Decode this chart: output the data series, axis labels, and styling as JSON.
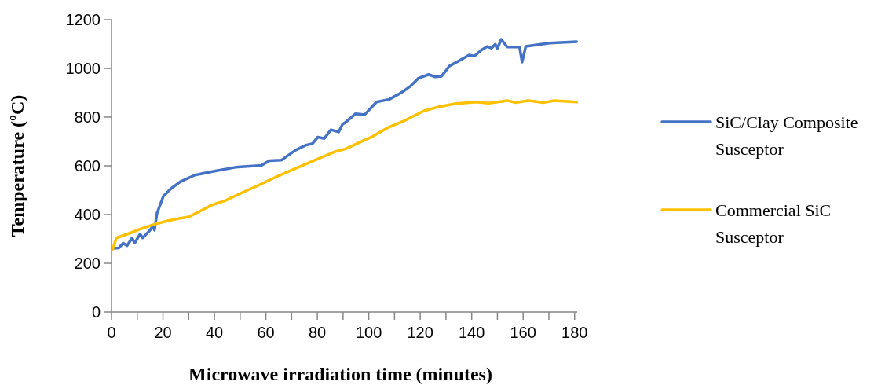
{
  "chart_data": {
    "type": "line",
    "xlabel": "Microwave irradiation time (minutes)",
    "ylabel": "Temperature (ºC)",
    "xlim": [
      0,
      181
    ],
    "xticks": [
      0,
      {
        "value": 10,
        "label": null
      },
      20,
      {
        "value": 30,
        "label": null
      },
      40,
      {
        "value": 50,
        "label": null
      },
      60,
      {
        "value": 70,
        "label": null
      },
      80,
      {
        "value": 90,
        "label": null
      },
      100,
      {
        "value": 110,
        "label": null
      },
      120,
      {
        "value": 130,
        "label": null
      },
      140,
      {
        "value": 150,
        "label": null
      },
      160,
      {
        "value": 170,
        "label": null
      },
      180
    ],
    "ylim": [
      0,
      1200
    ],
    "yticks": [
      0,
      200,
      400,
      600,
      800,
      1000,
      1200
    ],
    "grid": false,
    "legend": "right",
    "line_style": "solid",
    "marker": "none",
    "series": [
      {
        "name": "SiC/Clay Composite Susceptor",
        "color": "#4472c4",
        "x": [
          0.4,
          2.9,
          4.5,
          6,
          8,
          9,
          11.1,
          12.1,
          14.6,
          16.1,
          16.7,
          17.7,
          20.2,
          23.3,
          26.8,
          32.4,
          40,
          48.2,
          58.3,
          61.4,
          66,
          71.5,
          75.6,
          78.1,
          80.2,
          82.7,
          85.3,
          88.3,
          89.8,
          90.8,
          94.9,
          98.4,
          103,
          108,
          112.6,
          116.2,
          119.2,
          123.3,
          125.8,
          128.3,
          131.4,
          135.4,
          139,
          141,
          143.6,
          146.1,
          147.7,
          149.2,
          149.9,
          151.5,
          153.8,
          158.6,
          159.6,
          161,
          170.3,
          180.8
        ],
        "values": [
          261,
          263,
          283,
          272,
          304,
          283,
          320,
          304,
          331,
          352,
          336,
          406,
          476,
          508,
          535,
          562,
          578,
          594,
          602,
          621,
          623,
          664,
          685,
          691,
          718,
          712,
          748,
          739,
          771,
          777,
          814,
          810,
          862,
          873,
          900,
          927,
          959,
          975,
          965,
          968,
          1010,
          1033,
          1055,
          1050,
          1074,
          1090,
          1083,
          1099,
          1080,
          1119,
          1088,
          1088,
          1026,
          1090,
          1104,
          1110
        ]
      },
      {
        "name": "Commercial SiC Susceptor",
        "color": "#ffc000",
        "x": [
          0.4,
          1.9,
          7.5,
          11.6,
          16.7,
          21.8,
          26.8,
          29.9,
          35,
          39,
          44.1,
          50.2,
          57.3,
          65.5,
          72.6,
          79.7,
          86.8,
          90.8,
          101,
          107.1,
          114.2,
          121.3,
          127.4,
          133.5,
          141.6,
          146.7,
          153.8,
          156.9,
          162,
          168,
          172,
          180.8
        ],
        "values": [
          256,
          304,
          325,
          342,
          360,
          374,
          385,
          390,
          417,
          439,
          457,
          487,
          521,
          562,
          594,
          626,
          658,
          669,
          718,
          755,
          787,
          825,
          843,
          855,
          862,
          857,
          868,
          860,
          868,
          860,
          868,
          862
        ]
      }
    ]
  }
}
